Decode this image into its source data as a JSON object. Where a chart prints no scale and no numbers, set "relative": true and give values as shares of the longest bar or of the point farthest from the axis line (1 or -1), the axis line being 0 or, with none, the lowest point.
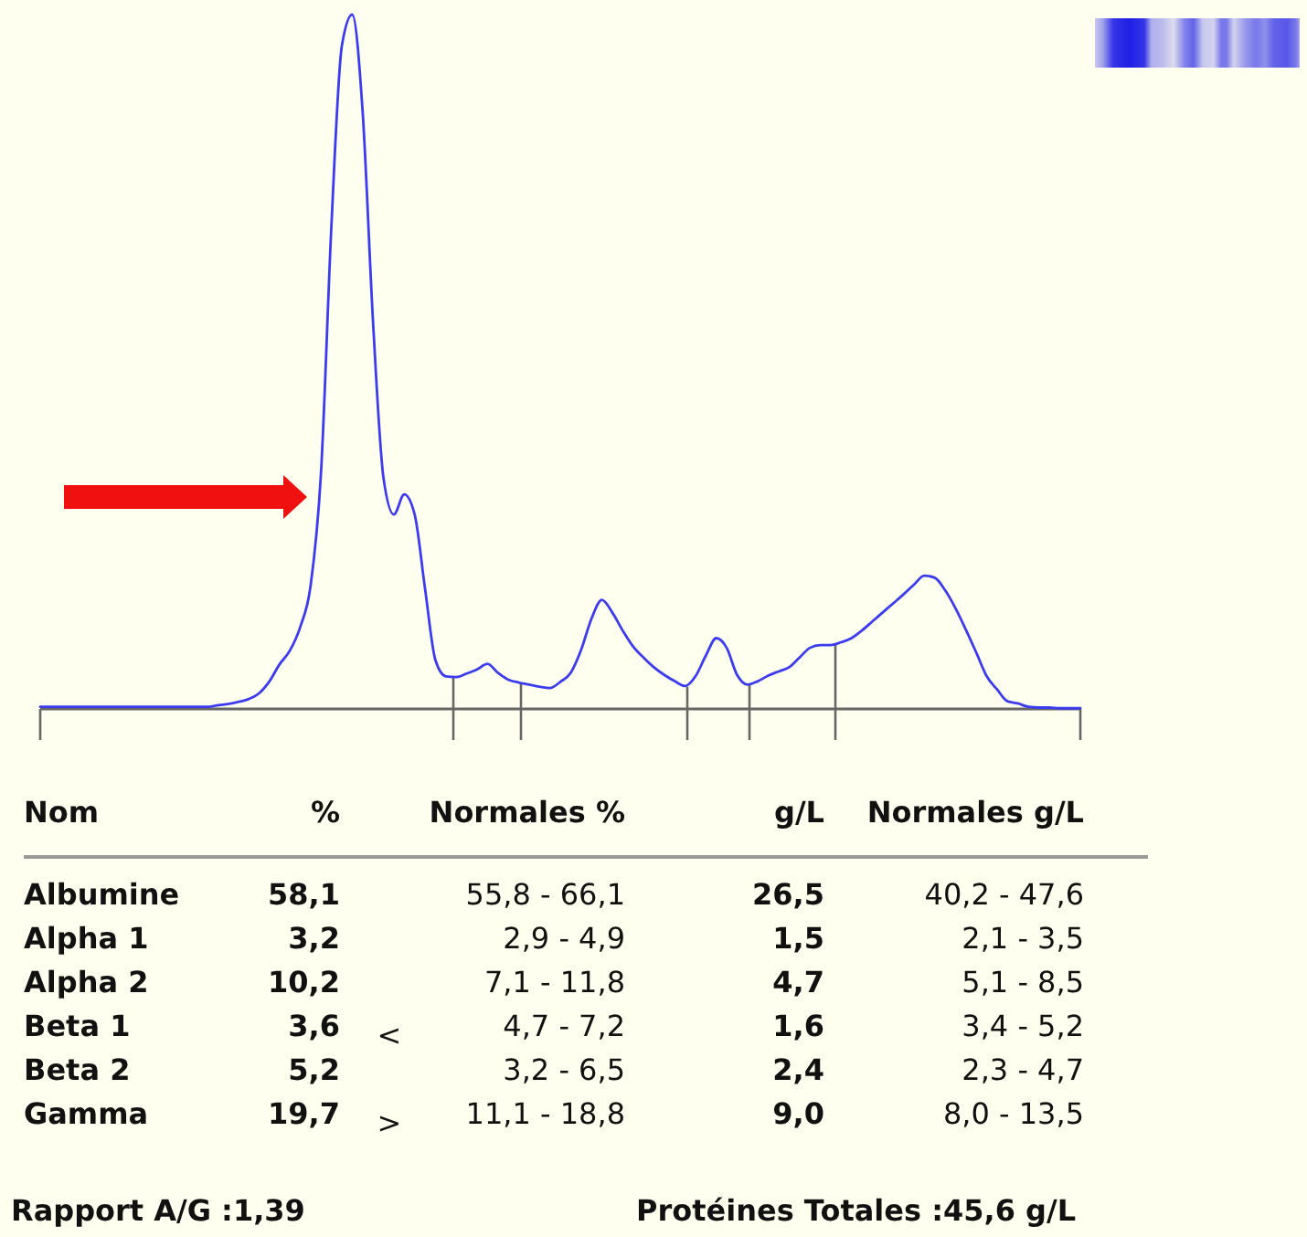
{
  "chart_data": [
    {
      "type": "line",
      "relative": true,
      "color": "#3b3bf0",
      "categories": [
        null,
        null,
        null,
        null,
        null,
        null,
        null,
        null,
        null,
        null,
        null,
        null,
        null,
        null,
        null,
        null,
        null,
        null,
        null,
        null,
        null,
        null,
        null,
        null,
        null,
        null,
        null,
        null,
        null,
        null,
        null,
        null,
        null,
        null,
        null,
        null,
        null,
        null,
        null,
        null,
        null,
        null,
        null,
        null,
        null,
        null,
        null,
        null,
        null,
        null,
        null,
        null,
        null,
        null,
        null,
        null,
        null,
        null,
        null,
        null,
        null,
        null,
        null,
        null,
        null,
        null,
        null,
        null,
        null,
        null,
        null,
        null,
        null,
        null,
        null,
        null,
        null,
        null,
        null,
        null,
        null,
        null,
        null,
        null,
        null,
        null,
        null,
        null,
        null,
        null,
        null,
        null,
        null,
        null,
        null,
        null,
        null,
        null,
        null,
        null,
        null
      ],
      "values": [
        0.003,
        0.003,
        0.003,
        0.003,
        0.003,
        0.003,
        0.003,
        0.003,
        0.003,
        0.003,
        0.003,
        0.003,
        0.003,
        0.003,
        0.003,
        0.003,
        0.003,
        0.005,
        0.007,
        0.01,
        0.014,
        0.022,
        0.039,
        0.064,
        0.084,
        0.118,
        0.178,
        0.341,
        0.697,
        0.955,
        1,
        0.86,
        0.557,
        0.333,
        0.28,
        0.309,
        0.28,
        0.173,
        0.07,
        0.047,
        0.046,
        0.051,
        0.057,
        0.065,
        0.052,
        0.042,
        0.038,
        0.035,
        0.032,
        0.03,
        0.039,
        0.052,
        0.085,
        0.13,
        0.157,
        0.139,
        0.113,
        0.09,
        0.074,
        0.06,
        0.049,
        0.04,
        0.033,
        0.047,
        0.077,
        0.102,
        0.088,
        0.049,
        0.035,
        0.04,
        0.048,
        0.054,
        0.06,
        0.074,
        0.088,
        0.092,
        0.092,
        0.096,
        0.102,
        0.113,
        0.126,
        0.139,
        0.152,
        0.165,
        0.179,
        0.192,
        0.189,
        0.171,
        0.145,
        0.114,
        0.081,
        0.047,
        0.028,
        0.011,
        0.008,
        0.003,
        0.002,
        0.002,
        0.001,
        0.001,
        0.001
      ]
    },
    {
      "type": "other",
      "categories": [
        "Nom",
        "%",
        null,
        "Normales %",
        "g/L",
        "Normales g/L"
      ],
      "cell_labels": [
        [
          "Albumine",
          "58,1",
          null,
          "55,8 - 66,1",
          "26,5",
          "40,2 - 47,6"
        ],
        [
          "Alpha 1",
          "3,2",
          null,
          "2,9 - 4,9",
          "1,5",
          "2,1 - 3,5"
        ],
        [
          "Alpha 2",
          "10,2",
          null,
          "7,1 - 11,8",
          "4,7",
          "5,1 - 8,5"
        ],
        [
          "Beta 1",
          "3,6",
          "<",
          "4,7 - 7,2",
          "1,6",
          "3,4 - 5,2"
        ],
        [
          "Beta 2",
          "5,2",
          null,
          "3,2 - 6,5",
          "2,4",
          "2,3 - 4,7"
        ],
        [
          "Gamma",
          "19,7",
          ">",
          "11,1 - 18,8",
          "9,0",
          "8,0 - 13,5"
        ]
      ],
      "annotations": [
        "Rapport A/G :1,39",
        "Protéines Totales :45,6 g/L"
      ]
    }
  ]
}
